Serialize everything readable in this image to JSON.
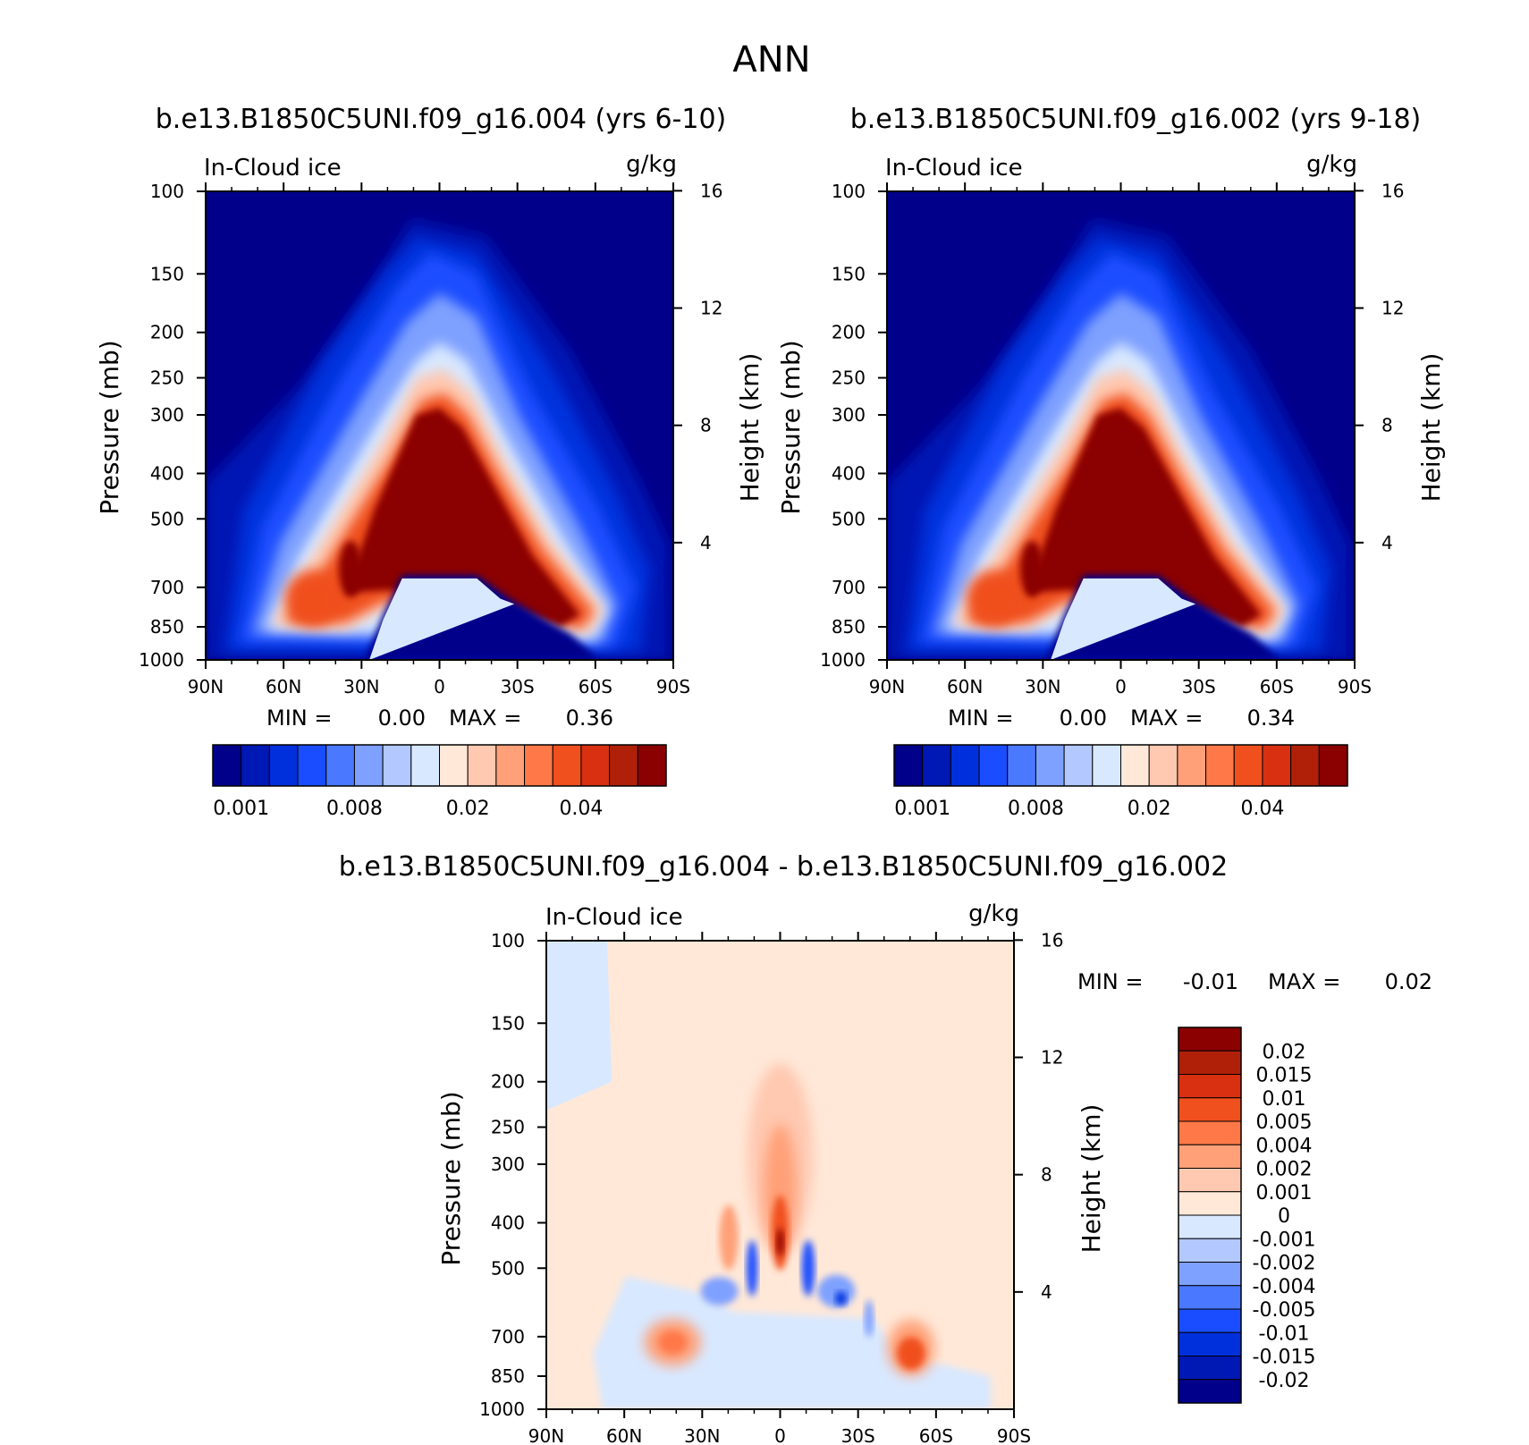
{
  "page_title": "ANN",
  "chart_data": [
    {
      "type": "heatmap",
      "title": "b.e13.B1850C5UNI.f09_g16.004 (yrs 6-10)",
      "left_label": "In-Cloud ice",
      "right_label": "g/kg",
      "xlabel": "",
      "ylabel": "Pressure (mb)",
      "ylabel_right": "Height (km)",
      "x_ticks": [
        "90N",
        "60N",
        "30N",
        "0",
        "30S",
        "60S",
        "90S"
      ],
      "y_ticks": [
        100,
        150,
        200,
        250,
        300,
        400,
        500,
        700,
        850,
        1000
      ],
      "y_right_ticks": [
        16,
        12,
        8,
        4
      ],
      "y_scale": "log",
      "ylim": [
        1000,
        100
      ],
      "min_label": "MIN =",
      "min_value": "0.00",
      "max_label": "MAX =",
      "max_value": "0.36",
      "colorbar_labels": [
        "0.001",
        "0.008",
        "0.02",
        "0.04"
      ],
      "colorbar_colors": [
        "#00008b",
        "#0018b4",
        "#0030dc",
        "#1a4dff",
        "#4a78ff",
        "#7ea0ff",
        "#b2c8ff",
        "#d8e8ff",
        "#ffe8d8",
        "#ffc8b0",
        "#ffa078",
        "#ff7848",
        "#f0501e",
        "#d83010",
        "#b02008",
        "#8b0000"
      ]
    },
    {
      "type": "heatmap",
      "title": "b.e13.B1850C5UNI.f09_g16.002 (yrs 9-18)",
      "left_label": "In-Cloud ice",
      "right_label": "g/kg",
      "xlabel": "",
      "ylabel": "Pressure (mb)",
      "ylabel_right": "Height (km)",
      "x_ticks": [
        "90N",
        "60N",
        "30N",
        "0",
        "30S",
        "60S",
        "90S"
      ],
      "y_ticks": [
        100,
        150,
        200,
        250,
        300,
        400,
        500,
        700,
        850,
        1000
      ],
      "y_right_ticks": [
        16,
        12,
        8,
        4
      ],
      "y_scale": "log",
      "ylim": [
        1000,
        100
      ],
      "min_label": "MIN =",
      "min_value": "0.00",
      "max_label": "MAX =",
      "max_value": "0.34",
      "colorbar_labels": [
        "0.001",
        "0.008",
        "0.02",
        "0.04"
      ],
      "colorbar_colors": [
        "#00008b",
        "#0018b4",
        "#0030dc",
        "#1a4dff",
        "#4a78ff",
        "#7ea0ff",
        "#b2c8ff",
        "#d8e8ff",
        "#ffe8d8",
        "#ffc8b0",
        "#ffa078",
        "#ff7848",
        "#f0501e",
        "#d83010",
        "#b02008",
        "#8b0000"
      ]
    },
    {
      "type": "heatmap",
      "title": "b.e13.B1850C5UNI.f09_g16.004 - b.e13.B1850C5UNI.f09_g16.002",
      "left_label": "In-Cloud ice",
      "right_label": "g/kg",
      "xlabel": "",
      "ylabel": "Pressure (mb)",
      "ylabel_right": "Height (km)",
      "x_ticks": [
        "90N",
        "60N",
        "30N",
        "0",
        "30S",
        "60S",
        "90S"
      ],
      "y_ticks": [
        100,
        150,
        200,
        250,
        300,
        400,
        500,
        700,
        850,
        1000
      ],
      "y_right_ticks": [
        16,
        12,
        8,
        4
      ],
      "y_scale": "log",
      "ylim": [
        1000,
        100
      ],
      "min_label": "MIN =",
      "min_value": "-0.01",
      "max_label": "MAX =",
      "max_value": "0.02",
      "colorbar_labels": [
        "0.02",
        "0.015",
        "0.01",
        "0.005",
        "0.004",
        "0.002",
        "0.001",
        "0",
        "-0.001",
        "-0.002",
        "-0.004",
        "-0.005",
        "-0.01",
        "-0.015",
        "-0.02"
      ],
      "colorbar_colors": [
        "#8b0000",
        "#b02008",
        "#d83010",
        "#f0501e",
        "#ff7848",
        "#ffa078",
        "#ffc8b0",
        "#ffe8d8",
        "#d8e8ff",
        "#b2c8ff",
        "#7ea0ff",
        "#4a78ff",
        "#1a4dff",
        "#0030dc",
        "#0018b4",
        "#00008b"
      ]
    }
  ]
}
